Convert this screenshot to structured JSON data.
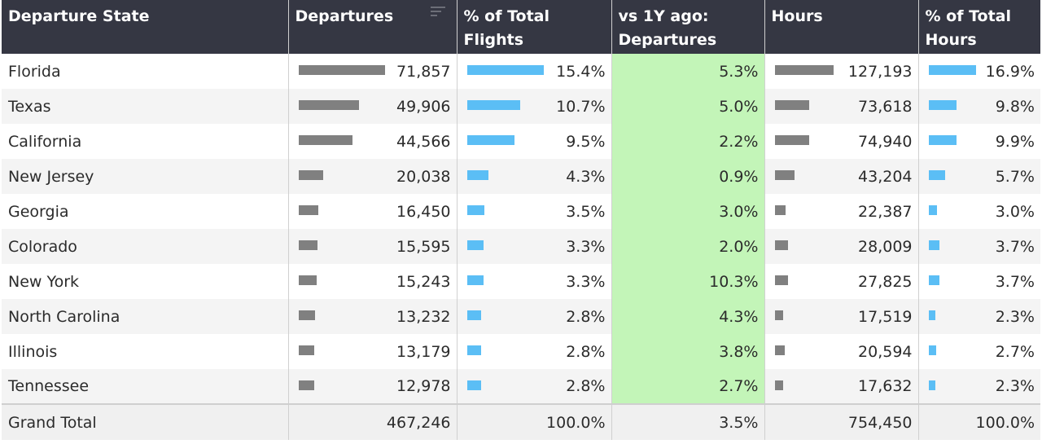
{
  "headers": {
    "state": "Departure State",
    "departures": "Departures",
    "pct_flights": "% of Total Flights",
    "vs1y": "vs 1Y ago: Departures",
    "hours": "Hours",
    "pct_hours": "% of Total Hours"
  },
  "rows": [
    {
      "state": "Florida",
      "departures": "71,857",
      "dep_frac": 1.0,
      "pct_flights": "15.4%",
      "pf_frac": 1.0,
      "vs1y": "5.3%",
      "hours": "127,193",
      "hours_frac": 1.0,
      "pct_hours": "16.9%",
      "ph_frac": 1.0
    },
    {
      "state": "Texas",
      "departures": "49,906",
      "dep_frac": 0.695,
      "pct_flights": "10.7%",
      "pf_frac": 0.695,
      "vs1y": "5.0%",
      "hours": "73,618",
      "hours_frac": 0.579,
      "pct_hours": "9.8%",
      "ph_frac": 0.58
    },
    {
      "state": "California",
      "departures": "44,566",
      "dep_frac": 0.62,
      "pct_flights": "9.5%",
      "pf_frac": 0.617,
      "vs1y": "2.2%",
      "hours": "74,940",
      "hours_frac": 0.589,
      "pct_hours": "9.9%",
      "ph_frac": 0.586
    },
    {
      "state": "New Jersey",
      "departures": "20,038",
      "dep_frac": 0.279,
      "pct_flights": "4.3%",
      "pf_frac": 0.279,
      "vs1y": "0.9%",
      "hours": "43,204",
      "hours_frac": 0.34,
      "pct_hours": "5.7%",
      "ph_frac": 0.337
    },
    {
      "state": "Georgia",
      "departures": "16,450",
      "dep_frac": 0.229,
      "pct_flights": "3.5%",
      "pf_frac": 0.227,
      "vs1y": "3.0%",
      "hours": "22,387",
      "hours_frac": 0.176,
      "pct_hours": "3.0%",
      "ph_frac": 0.178
    },
    {
      "state": "Colorado",
      "departures": "15,595",
      "dep_frac": 0.217,
      "pct_flights": "3.3%",
      "pf_frac": 0.214,
      "vs1y": "2.0%",
      "hours": "28,009",
      "hours_frac": 0.22,
      "pct_hours": "3.7%",
      "ph_frac": 0.219
    },
    {
      "state": "New York",
      "departures": "15,243",
      "dep_frac": 0.212,
      "pct_flights": "3.3%",
      "pf_frac": 0.214,
      "vs1y": "10.3%",
      "hours": "27,825",
      "hours_frac": 0.219,
      "pct_hours": "3.7%",
      "ph_frac": 0.219
    },
    {
      "state": "North Carolina",
      "departures": "13,232",
      "dep_frac": 0.184,
      "pct_flights": "2.8%",
      "pf_frac": 0.182,
      "vs1y": "4.3%",
      "hours": "17,519",
      "hours_frac": 0.138,
      "pct_hours": "2.3%",
      "ph_frac": 0.136
    },
    {
      "state": "Illinois",
      "departures": "13,179",
      "dep_frac": 0.183,
      "pct_flights": "2.8%",
      "pf_frac": 0.182,
      "vs1y": "3.8%",
      "hours": "20,594",
      "hours_frac": 0.162,
      "pct_hours": "2.7%",
      "ph_frac": 0.16
    },
    {
      "state": "Tennessee",
      "departures": "12,978",
      "dep_frac": 0.181,
      "pct_flights": "2.8%",
      "pf_frac": 0.182,
      "vs1y": "2.7%",
      "hours": "17,632",
      "hours_frac": 0.139,
      "pct_hours": "2.3%",
      "ph_frac": 0.136
    }
  ],
  "total": {
    "label": "Grand Total",
    "departures": "467,246",
    "pct_flights": "100.0%",
    "vs1y": "3.5%",
    "hours": "754,450",
    "pct_hours": "100.0%"
  },
  "colors": {
    "header_bg": "#353743",
    "bar_gray": "#808080",
    "bar_blue": "#5bbef5",
    "highlight_green": "#c3f5b8"
  },
  "icons": {
    "sort": "sort-descending-icon"
  }
}
